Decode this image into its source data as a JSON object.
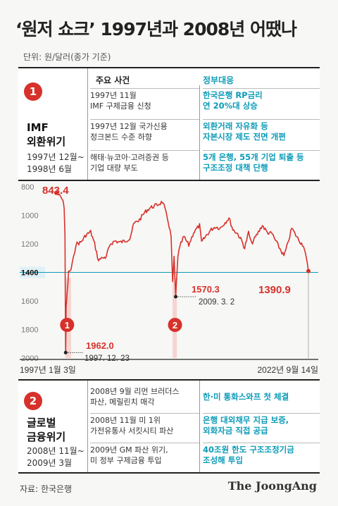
{
  "title": "‘원저 쇼크’ 1997년과 2008년 어땠나",
  "unit": "단위: 원/달러(종가 기준)",
  "headers": {
    "events": "주요 사건",
    "response": "정부대응"
  },
  "crisis1": {
    "num": "1",
    "name_lines": [
      "IMF",
      "외환위기"
    ],
    "period_lines": [
      "1997년 12월~",
      "1998년 6월"
    ],
    "rows": [
      {
        "event": [
          "1997년 11월",
          "IMF 구제금융 신청"
        ],
        "response": [
          "한국은행 RP금리",
          "연 20%대 상승"
        ]
      },
      {
        "event": [
          "1997년 12월 국가신용",
          "정크본드 수준 하향"
        ],
        "response": [
          "외환거래 자유화 등",
          "자본시장 제도 전면 개편"
        ]
      },
      {
        "event": [
          "해태·뉴코아·고려증권 등",
          "기업 대량 부도"
        ],
        "response": [
          "5개 은행, 55개 기업 퇴출 등",
          "구조조정 대책 단행"
        ]
      }
    ]
  },
  "crisis2": {
    "num": "2",
    "name_lines": [
      "글로벌",
      "금융위기"
    ],
    "period_lines": [
      "2008년 11월~",
      "2009년 3월"
    ],
    "rows": [
      {
        "event": [
          "2008년 9월 리먼 브러더스",
          "파산, 메릴린치 매각"
        ],
        "response": [
          "한·미 통화스와프 첫 체결"
        ]
      },
      {
        "event": [
          "2008년 11월 미 1위",
          "가전유통사 서킷시티 파산"
        ],
        "response": [
          "은행 대외채무 지급 보증,",
          "외화자금 직접 공급"
        ]
      },
      {
        "event": [
          "2009년 GM 파산 위기,",
          "미 정부 구제금융 투입"
        ],
        "response": [
          "40조원 한도 구조조정기금",
          "조성해 투입"
        ]
      }
    ]
  },
  "chart_data": {
    "type": "line",
    "ylabel": "",
    "y_inverted": true,
    "ylim": [
      2000,
      800
    ],
    "yticks": [
      800,
      1000,
      1200,
      1400,
      1600,
      1800,
      2000
    ],
    "highlight_tick": 1400,
    "x_start_label": "1997년 1월 3일",
    "x_end_label": "2022년 9월 14일",
    "x_range": [
      1997.0,
      2022.7
    ],
    "series": [
      {
        "values": [
          [
            1997.0,
            843.4
          ],
          [
            1997.3,
            862
          ],
          [
            1997.6,
            888
          ],
          [
            1997.8,
            940
          ],
          [
            1997.88,
            1150
          ],
          [
            1997.95,
            1962.0
          ],
          [
            1998.0,
            1650
          ],
          [
            1998.1,
            1550
          ],
          [
            1998.25,
            1400
          ],
          [
            1998.5,
            1380
          ],
          [
            1998.75,
            1300
          ],
          [
            1999.0,
            1200
          ],
          [
            1999.5,
            1190
          ],
          [
            2000.0,
            1140
          ],
          [
            2000.5,
            1115
          ],
          [
            2000.9,
            1200
          ],
          [
            2001.3,
            1320
          ],
          [
            2001.7,
            1290
          ],
          [
            2002.0,
            1310
          ],
          [
            2002.5,
            1200
          ],
          [
            2003.0,
            1180
          ],
          [
            2003.5,
            1190
          ],
          [
            2004.0,
            1180
          ],
          [
            2004.5,
            1160
          ],
          [
            2004.9,
            1060
          ],
          [
            2005.5,
            1030
          ],
          [
            2006.0,
            980
          ],
          [
            2006.5,
            950
          ],
          [
            2007.0,
            935
          ],
          [
            2007.5,
            920
          ],
          [
            2007.8,
            905
          ],
          [
            2008.0,
            940
          ],
          [
            2008.4,
            1040
          ],
          [
            2008.7,
            1150
          ],
          [
            2008.85,
            1470
          ],
          [
            2009.0,
            1300
          ],
          [
            2009.17,
            1570.3
          ],
          [
            2009.4,
            1280
          ],
          [
            2009.7,
            1200
          ],
          [
            2010.0,
            1150
          ],
          [
            2010.5,
            1210
          ],
          [
            2011.0,
            1120
          ],
          [
            2011.6,
            1070
          ],
          [
            2011.8,
            1190
          ],
          [
            2012.3,
            1140
          ],
          [
            2012.8,
            1100
          ],
          [
            2013.2,
            1080
          ],
          [
            2013.7,
            1090
          ],
          [
            2014.2,
            1050
          ],
          [
            2014.6,
            1020
          ],
          [
            2015.0,
            1100
          ],
          [
            2015.5,
            1130
          ],
          [
            2015.9,
            1180
          ],
          [
            2016.2,
            1230
          ],
          [
            2016.6,
            1120
          ],
          [
            2016.9,
            1200
          ],
          [
            2017.5,
            1130
          ],
          [
            2018.0,
            1070
          ],
          [
            2018.5,
            1120
          ],
          [
            2019.0,
            1130
          ],
          [
            2019.6,
            1210
          ],
          [
            2020.2,
            1285
          ],
          [
            2020.6,
            1200
          ],
          [
            2021.0,
            1090
          ],
          [
            2021.5,
            1150
          ],
          [
            2021.9,
            1190
          ],
          [
            2022.2,
            1210
          ],
          [
            2022.5,
            1310
          ],
          [
            2022.7,
            1390.9
          ]
        ]
      }
    ],
    "annotations": [
      {
        "label": "843.4",
        "x": 1997.0,
        "y": 843.4
      },
      {
        "label": "1962.0",
        "date": "1997. 12. 23",
        "x": 1997.95,
        "y": 1962.0
      },
      {
        "label": "1570.3",
        "date": "2009. 3. 2",
        "x": 2009.17,
        "y": 1570.3
      },
      {
        "label": "1390.9",
        "x": 2022.7,
        "y": 1390.9
      }
    ],
    "crisis_bands": [
      {
        "num": "1",
        "x_from": 1997.92,
        "x_to": 1998.5
      },
      {
        "num": "2",
        "x_from": 2008.85,
        "x_to": 2009.2
      }
    ]
  },
  "colors": {
    "accent": "#d7312b",
    "teal": "#0c9bb8",
    "band": "#f6d4d1",
    "highlight": "#dff1f6"
  },
  "source": "자료: 한국은행",
  "logo": "The JoongAng"
}
